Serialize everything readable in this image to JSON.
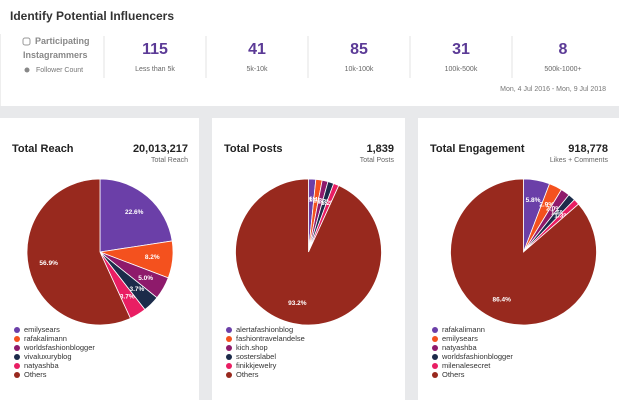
{
  "header": {
    "title": "Identify Potential Influencers",
    "participating": "Participating Instagrammers",
    "follower_count": "Follower Count",
    "stats": [
      {
        "value": 115,
        "label": "Less than 5k"
      },
      {
        "value": 41,
        "label": "5k-10k"
      },
      {
        "value": 85,
        "label": "10k-100k"
      },
      {
        "value": 31,
        "label": "100k-500k"
      },
      {
        "value": 8,
        "label": "500k-1000+"
      }
    ],
    "date_range": "Mon, 4 Jul 2016 - Mon, 9 Jul 2018"
  },
  "chart_data": [
    {
      "type": "pie",
      "title": "Total Reach",
      "total": "20,013,217",
      "total_label": "Total Reach",
      "categories": [
        "emilysears",
        "rafakalimann",
        "worldsfashionblogger",
        "vivaluxuryblog",
        "natyashba",
        "Others"
      ],
      "values": [
        22.6,
        8.2,
        5.0,
        3.7,
        3.7,
        56.9
      ],
      "value_labels": [
        "22.6%",
        "8.2%",
        "5.0%",
        "3.7%",
        "3.7%",
        "56.9%"
      ],
      "colors": [
        "#6b3fa8",
        "#f4511e",
        "#8e1a6b",
        "#1c2b4a",
        "#e91e63",
        "#98291e"
      ]
    },
    {
      "type": "pie",
      "title": "Total Posts",
      "total": "1,839",
      "total_label": "Total Posts",
      "categories": [
        "alertafashionblog",
        "fashiontravelandelse",
        "kich.shop",
        "sosterslabel",
        "finikkjewelry",
        "Others"
      ],
      "values": [
        1.6,
        1.4,
        1.3,
        1.3,
        1.2,
        93.2
      ],
      "value_labels": [
        "1.6%",
        "1.4%",
        "1.3%",
        "1.3%",
        "1.2%",
        "93.2%"
      ],
      "colors": [
        "#6b3fa8",
        "#f4511e",
        "#8e1a6b",
        "#1c2b4a",
        "#e91e63",
        "#98291e"
      ]
    },
    {
      "type": "pie",
      "title": "Total Engagement",
      "total": "918,778",
      "total_label": "Likes + Comments",
      "categories": [
        "rafakalimann",
        "emilysears",
        "natyashba",
        "worldsfashionblogger",
        "milenalesecret",
        "Others"
      ],
      "values": [
        5.8,
        2.9,
        2.0,
        1.6,
        1.3,
        86.4
      ],
      "value_labels": [
        "5.8%",
        "2.9%",
        "2.0%",
        "1.6%",
        "1.3%",
        "86.4%"
      ],
      "colors": [
        "#6b3fa8",
        "#f4511e",
        "#8e1a6b",
        "#1c2b4a",
        "#e91e63",
        "#98291e"
      ]
    }
  ]
}
